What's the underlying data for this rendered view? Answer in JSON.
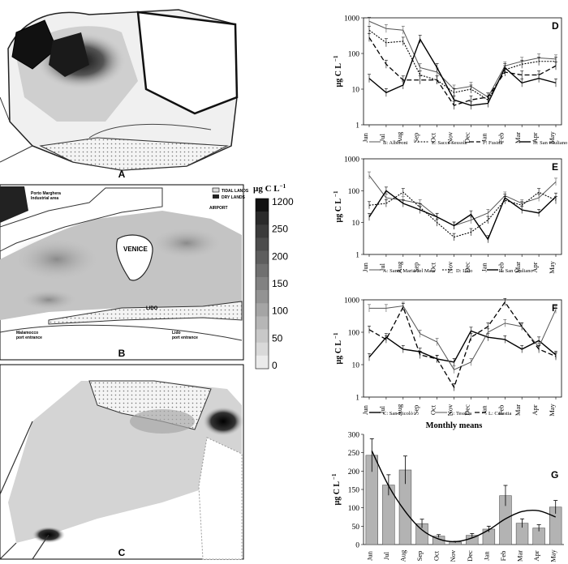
{
  "months": [
    "Jun",
    "Jul",
    "Aug",
    "Sep",
    "Oct",
    "Nov",
    "Dec",
    "Jan",
    "Feb",
    "Mar",
    "Apr",
    "May"
  ],
  "unit_label": "µg C L",
  "unit_sup": "−1",
  "maps": {
    "A": {
      "label": "A"
    },
    "B": {
      "label": "B",
      "legend_tidal": "TIDAL LANDS",
      "legend_dry": "DRY LANDS",
      "place_porto": "Porto Marghera",
      "place_industrial": "Industrial area",
      "place_airport": "AIRPORT",
      "place_venice": "VENICE",
      "place_lido": "LIDO",
      "place_malamocco_1": "Malamocco",
      "place_malamocco_2": "port entrance",
      "place_lido_port_1": "Lido",
      "place_lido_port_2": "port entrance"
    },
    "C": {
      "label": "C"
    }
  },
  "colorbar": {
    "ticks": [
      "1200",
      "250",
      "200",
      "150",
      "100",
      "50",
      "0"
    ],
    "colors": [
      "#111111",
      "#2a2a2a",
      "#3b3b3b",
      "#4d4d4d",
      "#5e5e5e",
      "#707070",
      "#828282",
      "#939393",
      "#a5a5a5",
      "#b6b6b6",
      "#c8c8c8",
      "#d9d9d9",
      "#ebebeb"
    ]
  },
  "chart_data": [
    {
      "panel": "D",
      "type": "line",
      "yscale": "log",
      "ylim": [
        1,
        1000
      ],
      "yticks": [
        "1",
        "10",
        "100",
        "1000"
      ],
      "categories": [
        "Jun",
        "Jul",
        "Aug",
        "Sep",
        "Oct",
        "Nov",
        "Dec",
        "Jan",
        "Feb",
        "Mar",
        "Apr",
        "May"
      ],
      "series": [
        {
          "name": "B: Alberoni",
          "style": "solid-thin",
          "values": [
            800,
            500,
            450,
            40,
            30,
            10,
            12,
            6,
            45,
            60,
            75,
            70
          ]
        },
        {
          "name": "E: Sacca Sessola",
          "style": "dotted",
          "values": [
            450,
            200,
            220,
            25,
            18,
            8,
            10,
            5,
            35,
            50,
            60,
            60
          ]
        },
        {
          "name": "F: Fusina",
          "style": "dashed",
          "values": [
            280,
            50,
            18,
            18,
            18,
            3.5,
            5,
            6,
            30,
            25,
            25,
            45
          ]
        },
        {
          "name": "H: San Giuliano",
          "style": "solid-thick",
          "values": [
            20,
            8,
            13,
            250,
            40,
            5,
            3.5,
            4,
            40,
            15,
            20,
            15
          ]
        }
      ]
    },
    {
      "panel": "E",
      "type": "line",
      "yscale": "log",
      "ylim": [
        1,
        1000
      ],
      "yticks": [
        "1",
        "10",
        "100",
        "1000"
      ],
      "categories": [
        "Jun",
        "Jul",
        "Aug",
        "Sep",
        "Oct",
        "Nov",
        "Dec",
        "Jan",
        "Feb",
        "Mar",
        "Apr",
        "May"
      ],
      "series": [
        {
          "name": "A: Santa Maria del Mare",
          "style": "solid-thin",
          "values": [
            300,
            60,
            50,
            40,
            15,
            8,
            12,
            20,
            70,
            40,
            60,
            190
          ]
        },
        {
          "name": "D: Lido",
          "style": "dotted",
          "values": [
            35,
            40,
            90,
            30,
            10,
            3.5,
            5,
            12,
            50,
            35,
            90,
            50
          ]
        },
        {
          "name": "I: San Giuliano",
          "style": "solid-thick",
          "values": [
            15,
            100,
            40,
            25,
            15,
            8,
            18,
            3,
            60,
            25,
            20,
            65
          ]
        }
      ]
    },
    {
      "panel": "F",
      "type": "line",
      "yscale": "log",
      "ylim": [
        1,
        1000
      ],
      "yticks": [
        "1",
        "10",
        "100",
        "1000"
      ],
      "categories": [
        "Jun",
        "Jul",
        "Aug",
        "Sep",
        "Oct",
        "Nov",
        "Dec",
        "Jan",
        "Feb",
        "Mar",
        "Apr",
        "May"
      ],
      "series": [
        {
          "name": "C: San Nicolò",
          "style": "solid-thick",
          "values": [
            17,
            70,
            30,
            25,
            15,
            12,
            110,
            70,
            60,
            30,
            55,
            20
          ]
        },
        {
          "name": "G: Tessera",
          "style": "solid-thin",
          "values": [
            550,
            550,
            650,
            90,
            50,
            7,
            12,
            100,
            190,
            150,
            35,
            500
          ]
        },
        {
          "name": "L: Celestia",
          "style": "dashed",
          "values": [
            120,
            60,
            600,
            20,
            15,
            2,
            70,
            150,
            850,
            150,
            30,
            18
          ]
        }
      ]
    },
    {
      "panel": "G",
      "type": "bar",
      "title": "Monthly means",
      "ylim": [
        0,
        300
      ],
      "yticks": [
        "0",
        "50",
        "100",
        "150",
        "200",
        "250",
        "300"
      ],
      "categories": [
        "Jun",
        "Jul",
        "Aug",
        "Sep",
        "Oct",
        "Nov",
        "Dec",
        "Jan",
        "Feb",
        "Mar",
        "Apr",
        "May"
      ],
      "values": [
        243,
        162,
        203,
        57,
        23,
        7,
        25,
        42,
        133,
        58,
        45,
        102
      ],
      "errors": [
        45,
        28,
        38,
        12,
        4,
        2,
        5,
        8,
        28,
        12,
        9,
        18
      ],
      "trend": [
        255,
        160,
        90,
        40,
        15,
        8,
        18,
        40,
        70,
        90,
        92,
        75
      ]
    }
  ]
}
